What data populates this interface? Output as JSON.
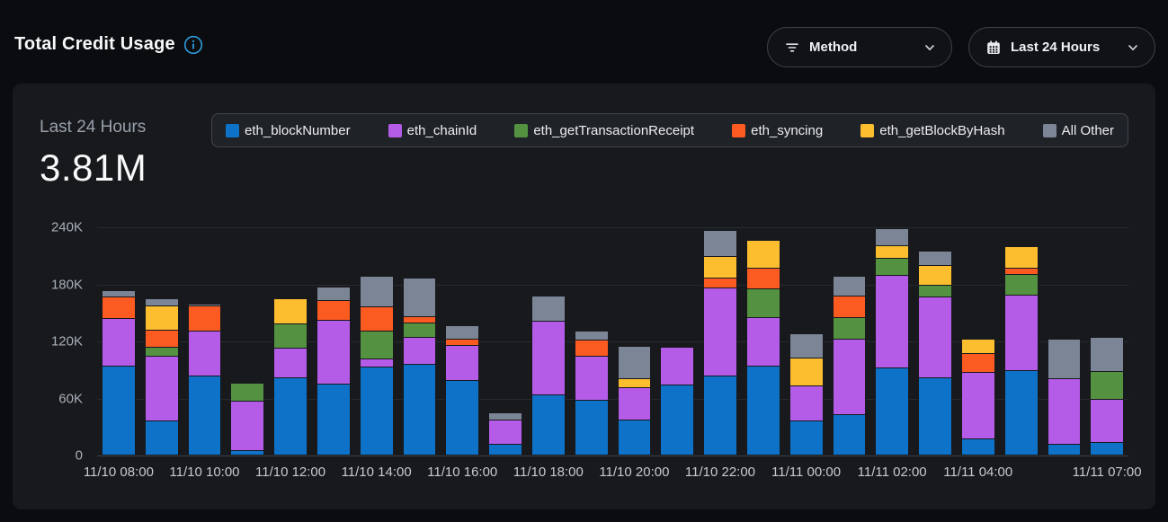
{
  "header": {
    "title": "Total Credit Usage",
    "method_dropdown": {
      "label": "Method"
    },
    "range_dropdown": {
      "label": "Last 24 Hours"
    }
  },
  "summary": {
    "period_label": "Last 24 Hours",
    "total_value": "3.81M"
  },
  "legend": {
    "items": [
      {
        "label": "eth_blockNumber",
        "color": "#0d72c8"
      },
      {
        "label": "eth_chainId",
        "color": "#b45ce8"
      },
      {
        "label": "eth_getTransactionReceipt",
        "color": "#549140"
      },
      {
        "label": "eth_syncing",
        "color": "#fb5a20"
      },
      {
        "label": "eth_getBlockByHash",
        "color": "#fcbd2e"
      },
      {
        "label": "All Other",
        "color": "#7b8596"
      }
    ]
  },
  "colors": {
    "accent_blue": "#2d9dde",
    "page_bg": "#0b0c0f",
    "card_bg": "#17191d"
  },
  "chart_data": {
    "type": "bar",
    "stacked": true,
    "title": "Total Credit Usage",
    "unit": "credits, values in thousands (estimated from gridlines)",
    "bar_count": 24,
    "ylim_thousands": [
      0,
      240
    ],
    "y_ticks": [
      "240K",
      "180K",
      "120K",
      "60K",
      "0"
    ],
    "grid": true,
    "legend_position": "top",
    "series": [
      {
        "name": "eth_blockNumber",
        "color": "#0d72c8",
        "values": [
          94,
          36,
          83,
          5,
          81,
          75,
          93,
          95,
          78,
          11,
          63,
          58,
          37,
          74,
          83,
          94,
          36,
          43,
          92,
          81,
          17,
          89,
          11,
          13
        ]
      },
      {
        "name": "eth_chainId",
        "color": "#b45ce8",
        "values": [
          50,
          68,
          47,
          52,
          31,
          67,
          8,
          29,
          37,
          26,
          78,
          46,
          34,
          39,
          93,
          51,
          37,
          79,
          97,
          85,
          70,
          79,
          69,
          46
        ]
      },
      {
        "name": "eth_getTransactionReceipt",
        "color": "#549140",
        "values": [
          0,
          9,
          0,
          19,
          26,
          0,
          29,
          15,
          0,
          0,
          0,
          0,
          0,
          0,
          0,
          30,
          0,
          23,
          18,
          13,
          0,
          22,
          0,
          29
        ]
      },
      {
        "name": "eth_syncing",
        "color": "#fb5a20",
        "values": [
          22,
          18,
          27,
          0,
          0,
          21,
          26,
          7,
          7,
          0,
          0,
          17,
          0,
          0,
          10,
          22,
          0,
          22,
          0,
          0,
          20,
          7,
          0,
          0
        ]
      },
      {
        "name": "eth_getBlockByHash",
        "color": "#fcbd2e",
        "values": [
          0,
          26,
          0,
          0,
          26,
          0,
          0,
          0,
          0,
          0,
          0,
          0,
          9,
          0,
          23,
          29,
          29,
          0,
          13,
          20,
          15,
          22,
          0,
          0
        ]
      },
      {
        "name": "All Other",
        "color": "#7b8596",
        "values": [
          7,
          7,
          2,
          0,
          0,
          14,
          32,
          40,
          14,
          7,
          26,
          9,
          34,
          0,
          27,
          0,
          26,
          21,
          18,
          16,
          0,
          0,
          42,
          36
        ]
      }
    ],
    "x_tick_labels": [
      {
        "bar_index": 0,
        "label": "11/10 08:00"
      },
      {
        "bar_index": 2,
        "label": "11/10 10:00"
      },
      {
        "bar_index": 4,
        "label": "11/10 12:00"
      },
      {
        "bar_index": 6,
        "label": "11/10 14:00"
      },
      {
        "bar_index": 8,
        "label": "11/10 16:00"
      },
      {
        "bar_index": 10,
        "label": "11/10 18:00"
      },
      {
        "bar_index": 12,
        "label": "11/10 20:00"
      },
      {
        "bar_index": 14,
        "label": "11/10 22:00"
      },
      {
        "bar_index": 16,
        "label": "11/11 00:00"
      },
      {
        "bar_index": 18,
        "label": "11/11 02:00"
      },
      {
        "bar_index": 20,
        "label": "11/11 04:00"
      },
      {
        "bar_index": 23,
        "label": "11/11 07:00"
      }
    ]
  }
}
